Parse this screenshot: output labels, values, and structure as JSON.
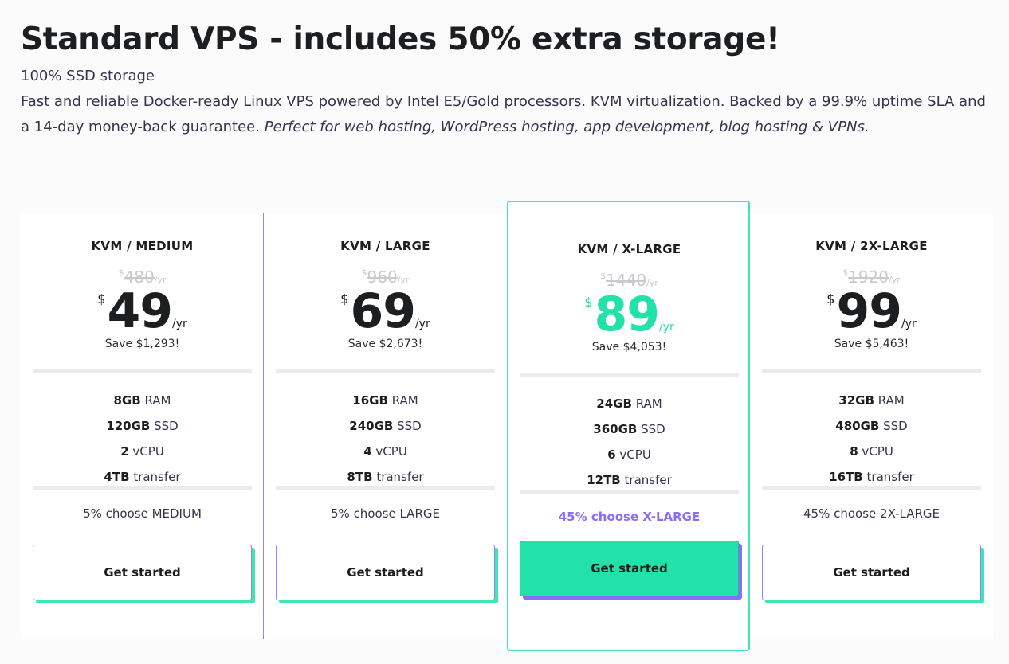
{
  "header": {
    "title": "Standard VPS - includes 50% extra storage!",
    "subtitle": "100% SSD storage",
    "description": "Fast and reliable Docker-ready Linux VPS powered by Intel E5/Gold processors. KVM virtualization. Backed by a 99.9% uptime SLA and a 14-day money-back guarantee.",
    "description_italic": "Perfect for web hosting, WordPress hosting, app development, blog hosting & VPNs."
  },
  "colors": {
    "accent_green": "#22e2a9",
    "accent_purple": "#8c6bff",
    "border_purple": "#8c85ff"
  },
  "plans": [
    {
      "name": "KVM / MEDIUM",
      "currency": "$",
      "old_price": "480",
      "old_period": "/yr",
      "price": "49",
      "period": "/yr",
      "save": "Save $1,293!",
      "ram_value": "8GB",
      "ram_label": "RAM",
      "ssd_value": "120GB",
      "ssd_label": "SSD",
      "cpu_value": "2",
      "cpu_label": "vCPU",
      "transfer_value": "4TB",
      "transfer_label": "transfer",
      "choose": "5% choose MEDIUM",
      "button": "Get started"
    },
    {
      "name": "KVM / LARGE",
      "currency": "$",
      "old_price": "960",
      "old_period": "/yr",
      "price": "69",
      "period": "/yr",
      "save": "Save $2,673!",
      "ram_value": "16GB",
      "ram_label": "RAM",
      "ssd_value": "240GB",
      "ssd_label": "SSD",
      "cpu_value": "4",
      "cpu_label": "vCPU",
      "transfer_value": "8TB",
      "transfer_label": "transfer",
      "choose": "5% choose LARGE",
      "button": "Get started"
    },
    {
      "name": "KVM / X-LARGE",
      "currency": "$",
      "old_price": "1440",
      "old_period": "/yr",
      "price": "89",
      "period": "/yr",
      "save": "Save $4,053!",
      "ram_value": "24GB",
      "ram_label": "RAM",
      "ssd_value": "360GB",
      "ssd_label": "SSD",
      "cpu_value": "6",
      "cpu_label": "vCPU",
      "transfer_value": "12TB",
      "transfer_label": "transfer",
      "choose": "45% choose X-LARGE",
      "button": "Get started"
    },
    {
      "name": "KVM / 2X-LARGE",
      "currency": "$",
      "old_price": "1920",
      "old_period": "/yr",
      "price": "99",
      "period": "/yr",
      "save": "Save $5,463!",
      "ram_value": "32GB",
      "ram_label": "RAM",
      "ssd_value": "480GB",
      "ssd_label": "SSD",
      "cpu_value": "8",
      "cpu_label": "vCPU",
      "transfer_value": "16TB",
      "transfer_label": "transfer",
      "choose": "45% choose 2X-LARGE",
      "button": "Get started"
    }
  ]
}
